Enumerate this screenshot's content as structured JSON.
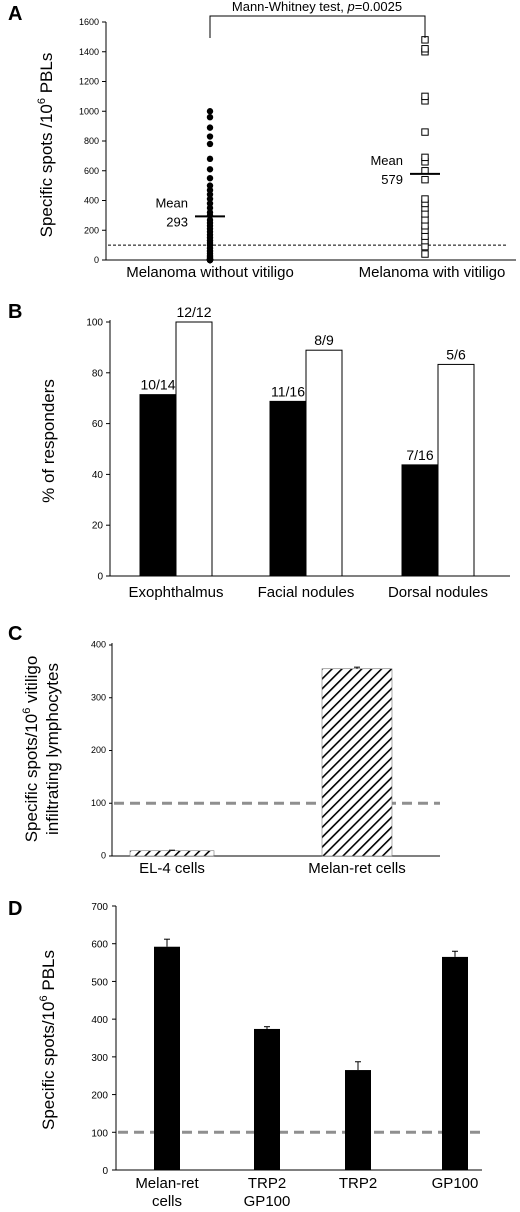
{
  "chart_data": [
    {
      "panel": "A",
      "type": "scatter",
      "ylabel": "Specific spots /10",
      "ylabel_sup": "6",
      "ylabel_tail": " PBLs",
      "ylim": [
        0,
        1600
      ],
      "yticks": [
        0,
        200,
        400,
        600,
        800,
        1000,
        1200,
        1400,
        1600
      ],
      "threshold": 100,
      "significance": "Mann-Whitney test, ",
      "significance_p": "p",
      "significance_value": "=0.0025",
      "mean_word": "Mean",
      "series": [
        {
          "category": "Melanoma without vitiligo",
          "marker": "filled-circle",
          "mean": 293,
          "values": [
            0,
            0,
            0,
            0,
            0,
            0,
            0,
            0,
            0,
            10,
            20,
            30,
            45,
            60,
            80,
            100,
            115,
            130,
            150,
            170,
            190,
            210,
            230,
            250,
            270,
            300,
            320,
            350,
            380,
            410,
            440,
            470,
            500,
            550,
            610,
            680,
            780,
            830,
            890,
            960,
            1000
          ]
        },
        {
          "category": "Melanoma with vitiligo",
          "marker": "open-square",
          "mean": 579,
          "values": [
            40,
            90,
            130,
            160,
            200,
            230,
            270,
            310,
            350,
            380,
            410,
            540,
            600,
            660,
            690,
            860,
            1070,
            1100,
            1400,
            1420,
            1480
          ]
        }
      ]
    },
    {
      "panel": "B",
      "type": "bar",
      "ylabel": "% of responders",
      "ylim": [
        0,
        100
      ],
      "yticks": [
        0,
        20,
        40,
        60,
        80,
        100
      ],
      "categories": [
        "Exophthalmus",
        "Facial nodules",
        "Dorsal nodules"
      ],
      "series": [
        {
          "fill": "#000000",
          "values": [
            71.4,
            68.75,
            43.75
          ],
          "labels": [
            "10/14",
            "11/16",
            "7/16"
          ]
        },
        {
          "fill": "#ffffff",
          "values": [
            100,
            88.9,
            83.3
          ],
          "labels": [
            "12/12",
            "8/9",
            "5/6"
          ]
        }
      ]
    },
    {
      "panel": "C",
      "type": "bar",
      "ylabel_line1_pre": "Specific spots/10",
      "ylabel_line1_sup": "6",
      "ylabel_line1_post": " vitiligo",
      "ylabel_line2": "infiltrating lymphocytes",
      "ylim": [
        0,
        400
      ],
      "yticks": [
        0,
        100,
        200,
        300,
        400
      ],
      "threshold": 100,
      "fill": "hatched",
      "categories": [
        "EL-4 cells",
        "Melan-ret cells"
      ],
      "values": [
        10,
        355
      ],
      "errors": [
        1,
        3
      ]
    },
    {
      "panel": "D",
      "type": "bar",
      "ylabel": "Specific spots/10",
      "ylabel_sup": "6",
      "ylabel_tail": " PBLs",
      "ylim": [
        0,
        700
      ],
      "yticks": [
        0,
        100,
        200,
        300,
        400,
        500,
        600,
        700
      ],
      "threshold": 100,
      "fill": "#000000",
      "categories": [
        [
          "Melan-ret",
          "cells"
        ],
        [
          "TRP2",
          "GP100"
        ],
        [
          "TRP2"
        ],
        [
          "GP100"
        ]
      ],
      "values": [
        592,
        374,
        265,
        565
      ],
      "errors": [
        20,
        6,
        22,
        15
      ]
    }
  ]
}
